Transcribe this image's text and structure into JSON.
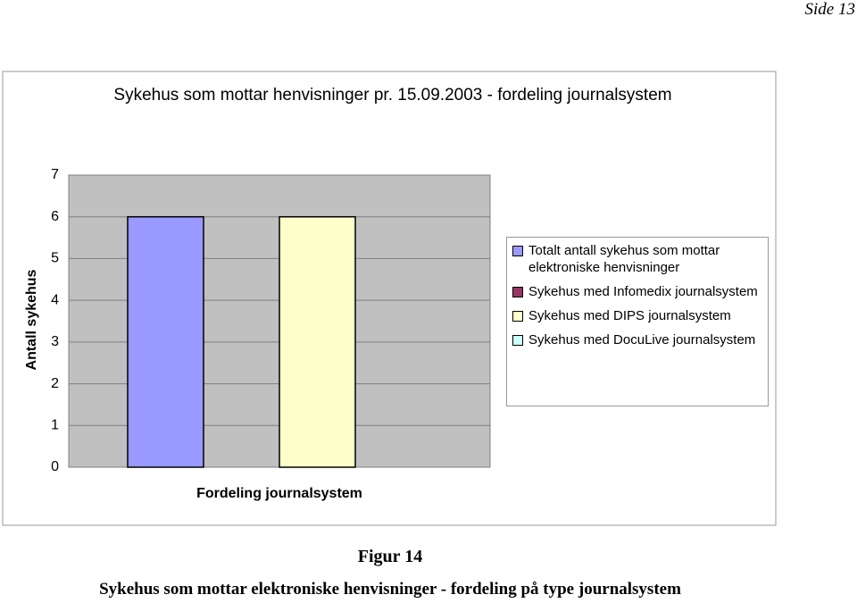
{
  "page_header": "Side 13",
  "chart_data": {
    "type": "bar",
    "title": "Sykehus som mottar henvisninger  pr. 15.09.2003 - fordeling journalsystem",
    "y_label": "Antall sykehus",
    "categories": [
      "Fordeling journalsystem"
    ],
    "series": [
      {
        "name": "Totalt antall sykehus som mottar elektroniske henvisninger",
        "color": "#9999ff",
        "values": [
          6
        ]
      },
      {
        "name": "Sykehus med Infomedix journalsystem",
        "color": "#993366",
        "values": [
          0
        ]
      },
      {
        "name": "Sykehus med DIPS journalsystem",
        "color": "#ffffcc",
        "values": [
          6
        ]
      },
      {
        "name": "Sykehus med DocuLive journalsystem",
        "color": "#ccffff",
        "values": [
          0
        ]
      }
    ],
    "ylim": [
      0,
      7
    ],
    "yticks": [
      0,
      1,
      2,
      3,
      4,
      5,
      6,
      7
    ],
    "grid": true,
    "legend": "right"
  },
  "caption": {
    "figure": "Figur 14",
    "text": "Sykehus som mottar elektroniske henvisninger - fordeling på type journalsystem"
  }
}
